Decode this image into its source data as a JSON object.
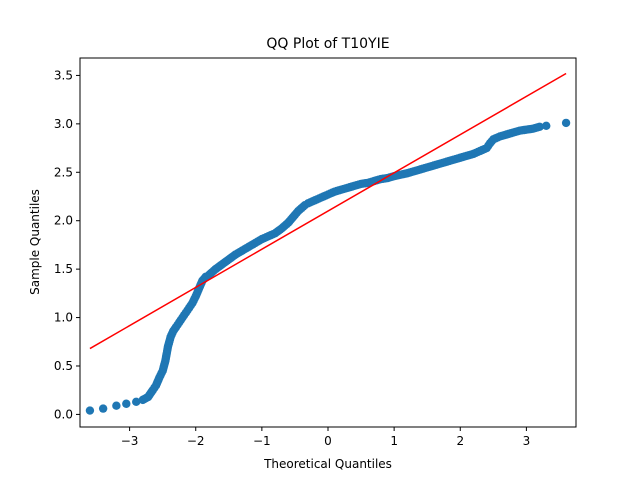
{
  "chart_data": {
    "type": "scatter",
    "title": "QQ Plot of T10YIE",
    "xlabel": "Theoretical Quantiles",
    "ylabel": "Sample Quantiles",
    "xlim": [
      -3.75,
      3.75
    ],
    "ylim": [
      -0.13,
      3.68
    ],
    "xticks": [
      -3,
      -2,
      -1,
      0,
      1,
      2,
      3
    ],
    "xtick_labels": [
      "−3",
      "−2",
      "−1",
      "0",
      "1",
      "2",
      "3"
    ],
    "yticks": [
      0.0,
      0.5,
      1.0,
      1.5,
      2.0,
      2.5,
      3.0,
      3.5
    ],
    "ytick_labels": [
      "0.0",
      "0.5",
      "1.0",
      "1.5",
      "2.0",
      "2.5",
      "3.0",
      "3.5"
    ],
    "grid": false,
    "marker_color": "#1f77b4",
    "line_color": "#ff0000",
    "reference_line": {
      "x": [
        -3.6,
        3.6
      ],
      "y": [
        0.68,
        3.52
      ]
    },
    "quantile_curve": {
      "x": [
        -3.6,
        -3.4,
        -3.2,
        -3.05,
        -2.9,
        -2.8,
        -2.72,
        -2.65,
        -2.6,
        -2.55,
        -2.5,
        -2.46,
        -2.42,
        -2.38,
        -2.34,
        -2.3,
        -2.25,
        -2.2,
        -2.15,
        -2.1,
        -2.05,
        -2.0,
        -1.95,
        -1.9,
        -1.85,
        -1.8,
        -1.75,
        -1.7,
        -1.6,
        -1.5,
        -1.4,
        -1.3,
        -1.2,
        -1.1,
        -1.0,
        -0.9,
        -0.8,
        -0.7,
        -0.6,
        -0.5,
        -0.45,
        -0.4,
        -0.35,
        -0.3,
        -0.2,
        -0.1,
        0.0,
        0.1,
        0.2,
        0.3,
        0.4,
        0.5,
        0.6,
        0.7,
        0.8,
        0.9,
        1.0,
        1.2,
        1.4,
        1.6,
        1.8,
        2.0,
        2.2,
        2.3,
        2.4,
        2.45,
        2.5,
        2.6,
        2.7,
        2.8,
        2.9,
        3.0,
        3.1,
        3.2,
        3.3,
        3.6
      ],
      "y": [
        0.04,
        0.06,
        0.09,
        0.11,
        0.13,
        0.15,
        0.18,
        0.25,
        0.3,
        0.38,
        0.45,
        0.55,
        0.7,
        0.8,
        0.86,
        0.9,
        0.95,
        1.0,
        1.05,
        1.1,
        1.15,
        1.22,
        1.3,
        1.38,
        1.42,
        1.44,
        1.47,
        1.5,
        1.55,
        1.6,
        1.65,
        1.69,
        1.73,
        1.77,
        1.81,
        1.84,
        1.87,
        1.92,
        1.98,
        2.06,
        2.1,
        2.13,
        2.16,
        2.18,
        2.21,
        2.24,
        2.27,
        2.3,
        2.32,
        2.34,
        2.36,
        2.38,
        2.39,
        2.41,
        2.43,
        2.44,
        2.46,
        2.49,
        2.53,
        2.57,
        2.61,
        2.65,
        2.69,
        2.72,
        2.75,
        2.8,
        2.84,
        2.87,
        2.89,
        2.91,
        2.93,
        2.94,
        2.95,
        2.97,
        2.98,
        3.01
      ]
    }
  }
}
